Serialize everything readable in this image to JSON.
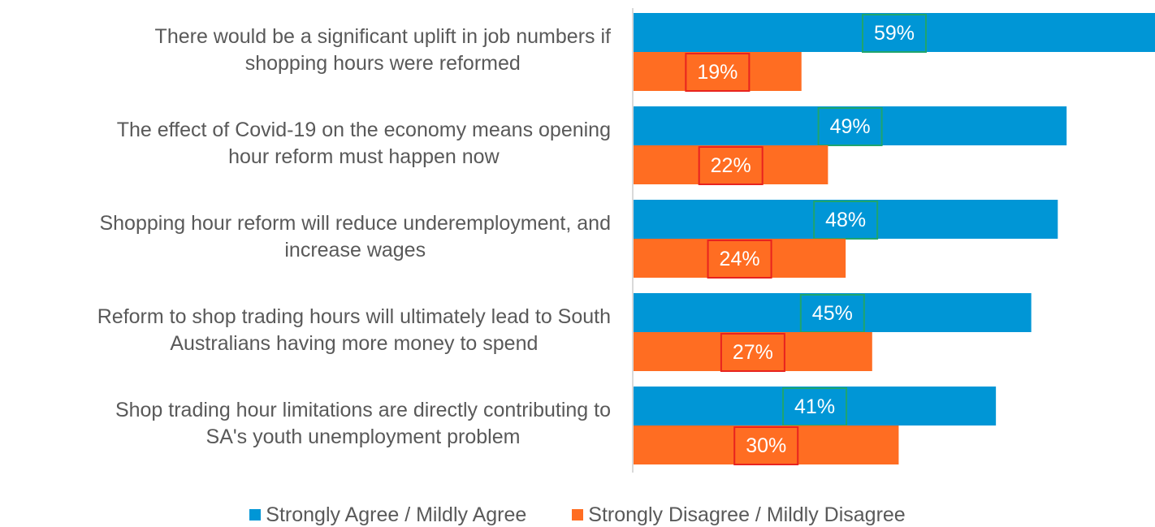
{
  "chart_data": {
    "type": "bar",
    "orientation": "horizontal",
    "categories": [
      "There would be a significant uplift in job numbers if shopping hours were reformed",
      "The effect of Covid-19 on the economy means opening hour reform must happen now",
      "Shopping hour reform will reduce underemployment, and increase wages",
      "Reform to shop trading hours will ultimately lead to South Australians having more money to spend",
      "Shop trading hour limitations are directly contributing to SA's youth unemployment problem"
    ],
    "category_lines": [
      [
        "There would be a significant uplift in job numbers if",
        "shopping hours were reformed"
      ],
      [
        "The effect of Covid-19 on the economy means opening",
        "hour reform must happen now"
      ],
      [
        "Shopping hour reform will reduce underemployment, and",
        "increase wages"
      ],
      [
        "Reform to shop trading hours will ultimately lead to South",
        "Australians having more money to spend"
      ],
      [
        "Shop trading hour limitations are directly contributing to",
        "SA's youth unemployment problem"
      ]
    ],
    "series": [
      {
        "name": "Strongly Agree / Mildly Agree",
        "color": "#0096D6",
        "label_box_color": "#1FA56E",
        "values": [
          59,
          49,
          48,
          45,
          41
        ],
        "labels": [
          "59%",
          "49%",
          "48%",
          "45%",
          "41%"
        ]
      },
      {
        "name": "Strongly Disagree / Mildly Disagree",
        "color": "#FF6D22",
        "label_box_color": "#E8231F",
        "values": [
          19,
          22,
          24,
          27,
          30
        ],
        "labels": [
          "19%",
          "22%",
          "24%",
          "27%",
          "30%"
        ]
      }
    ],
    "xlim": [
      0,
      59
    ],
    "grid": false,
    "legend_position": "bottom"
  }
}
